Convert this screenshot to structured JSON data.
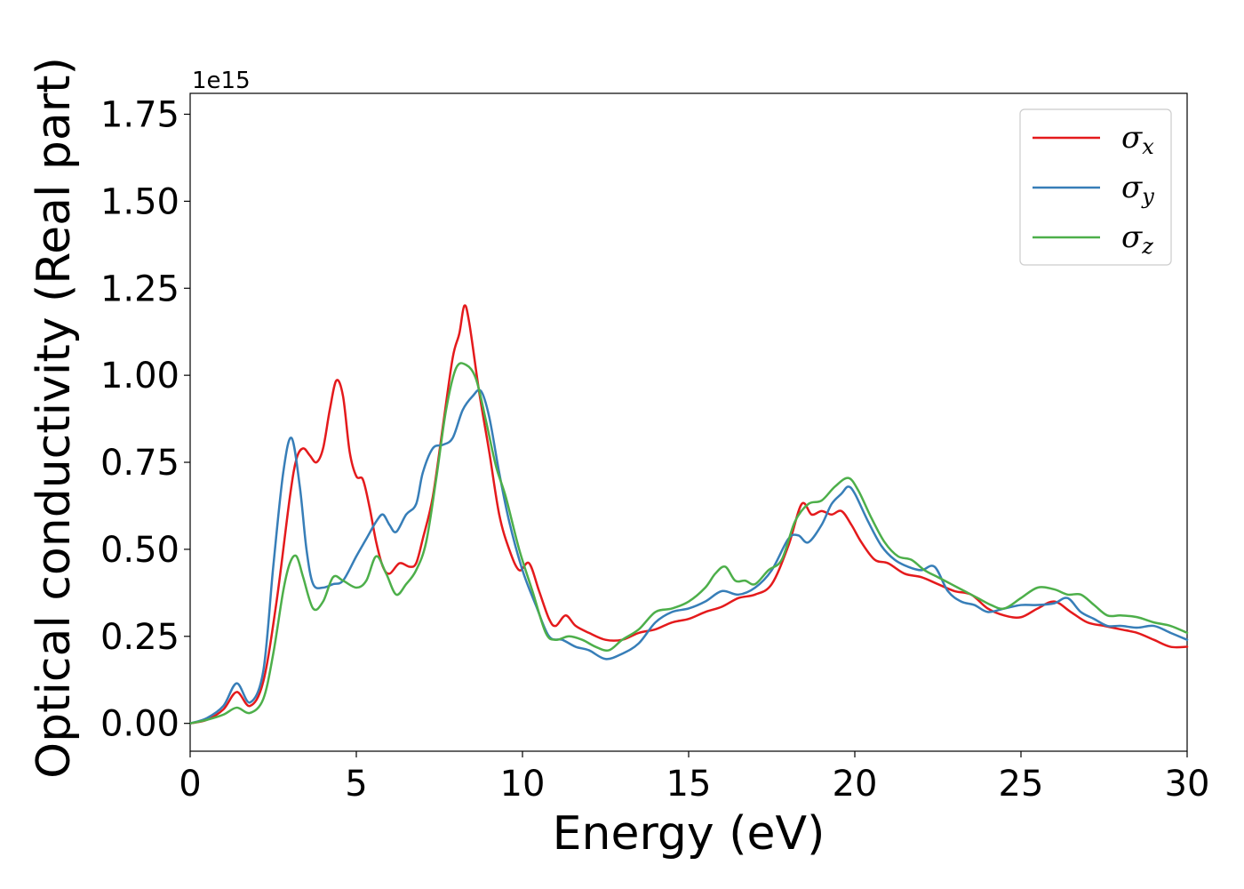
{
  "chart_data": {
    "type": "line",
    "title": "",
    "xlabel": "Energy (eV)",
    "ylabel": "Optical conductivity (Real part)",
    "y_offset_label": "1e15",
    "xlim": [
      0,
      30
    ],
    "ylim": [
      -0.08,
      1.81
    ],
    "xticks": [
      0,
      5,
      10,
      15,
      20,
      25,
      30
    ],
    "xtick_labels": [
      "0",
      "5",
      "10",
      "15",
      "20",
      "25",
      "30"
    ],
    "yticks": [
      0.0,
      0.25,
      0.5,
      0.75,
      1.0,
      1.25,
      1.5,
      1.75
    ],
    "ytick_labels": [
      "0.00",
      "0.25",
      "0.50",
      "0.75",
      "1.00",
      "1.25",
      "1.50",
      "1.75"
    ],
    "grid": false,
    "legend": {
      "placement": "top-right"
    },
    "series": [
      {
        "name": "σx",
        "symbol": "σ",
        "subscript": "x",
        "color": "#e41a1c",
        "x": [
          0,
          0.5,
          1.0,
          1.4,
          1.8,
          2.2,
          2.6,
          3.0,
          3.2,
          3.4,
          3.6,
          3.8,
          4.0,
          4.2,
          4.4,
          4.6,
          4.8,
          5.0,
          5.2,
          5.4,
          5.6,
          5.8,
          6.0,
          6.3,
          6.6,
          6.8,
          7.0,
          7.3,
          7.6,
          7.9,
          8.1,
          8.25,
          8.4,
          8.7,
          9.0,
          9.3,
          9.6,
          9.9,
          10.2,
          10.5,
          10.8,
          11.0,
          11.3,
          11.6,
          12.0,
          12.5,
          13.0,
          13.5,
          14.0,
          14.5,
          15.0,
          15.5,
          16.0,
          16.5,
          17.0,
          17.5,
          18.0,
          18.4,
          18.7,
          19.0,
          19.3,
          19.6,
          19.9,
          20.2,
          20.6,
          21.0,
          21.5,
          22.0,
          22.5,
          23.0,
          23.5,
          24.0,
          24.5,
          25.0,
          25.5,
          26.0,
          26.5,
          27.0,
          27.5,
          28.0,
          28.5,
          29.0,
          29.5,
          30.0
        ],
        "values": [
          0.0,
          0.01,
          0.04,
          0.09,
          0.05,
          0.12,
          0.35,
          0.65,
          0.76,
          0.79,
          0.77,
          0.75,
          0.79,
          0.9,
          0.985,
          0.94,
          0.78,
          0.71,
          0.7,
          0.62,
          0.52,
          0.45,
          0.43,
          0.46,
          0.45,
          0.46,
          0.53,
          0.65,
          0.85,
          1.05,
          1.12,
          1.2,
          1.15,
          0.95,
          0.78,
          0.6,
          0.5,
          0.44,
          0.46,
          0.38,
          0.3,
          0.28,
          0.31,
          0.28,
          0.26,
          0.24,
          0.24,
          0.26,
          0.27,
          0.29,
          0.3,
          0.32,
          0.335,
          0.36,
          0.37,
          0.4,
          0.51,
          0.63,
          0.6,
          0.61,
          0.6,
          0.61,
          0.57,
          0.52,
          0.47,
          0.46,
          0.43,
          0.42,
          0.4,
          0.38,
          0.37,
          0.33,
          0.31,
          0.305,
          0.33,
          0.35,
          0.32,
          0.29,
          0.28,
          0.27,
          0.26,
          0.24,
          0.22,
          0.22
        ]
      },
      {
        "name": "σy",
        "symbol": "σ",
        "subscript": "y",
        "color": "#377eb8",
        "x": [
          0,
          0.5,
          1.0,
          1.4,
          1.8,
          2.2,
          2.5,
          2.8,
          3.05,
          3.3,
          3.5,
          3.7,
          4.0,
          4.3,
          4.6,
          5.0,
          5.3,
          5.6,
          5.8,
          6.0,
          6.2,
          6.5,
          6.8,
          7.0,
          7.3,
          7.6,
          7.9,
          8.2,
          8.5,
          8.75,
          9.0,
          9.3,
          9.6,
          10.0,
          10.4,
          10.8,
          11.2,
          11.6,
          12.0,
          12.5,
          13.0,
          13.5,
          14.0,
          14.5,
          15.0,
          15.5,
          16.0,
          16.5,
          17.0,
          17.5,
          18.0,
          18.3,
          18.6,
          19.0,
          19.3,
          19.6,
          19.8,
          20.0,
          20.4,
          20.8,
          21.2,
          21.6,
          22.0,
          22.4,
          22.8,
          23.2,
          23.6,
          24.0,
          24.5,
          25.0,
          25.5,
          26.0,
          26.4,
          26.8,
          27.2,
          27.6,
          28.0,
          28.5,
          29.0,
          29.5,
          30.0
        ],
        "values": [
          0.0,
          0.015,
          0.05,
          0.115,
          0.06,
          0.15,
          0.45,
          0.72,
          0.82,
          0.68,
          0.5,
          0.4,
          0.39,
          0.4,
          0.41,
          0.48,
          0.53,
          0.58,
          0.6,
          0.57,
          0.55,
          0.6,
          0.63,
          0.72,
          0.79,
          0.8,
          0.82,
          0.9,
          0.94,
          0.955,
          0.88,
          0.72,
          0.58,
          0.44,
          0.34,
          0.25,
          0.24,
          0.22,
          0.21,
          0.185,
          0.2,
          0.23,
          0.29,
          0.32,
          0.33,
          0.35,
          0.38,
          0.37,
          0.39,
          0.44,
          0.53,
          0.54,
          0.52,
          0.57,
          0.63,
          0.66,
          0.68,
          0.66,
          0.58,
          0.51,
          0.47,
          0.45,
          0.44,
          0.45,
          0.38,
          0.35,
          0.34,
          0.32,
          0.33,
          0.34,
          0.34,
          0.345,
          0.36,
          0.32,
          0.3,
          0.28,
          0.28,
          0.275,
          0.28,
          0.26,
          0.24
        ]
      },
      {
        "name": "σz",
        "symbol": "σ",
        "subscript": "z",
        "color": "#4daf4a",
        "x": [
          0,
          0.5,
          1.0,
          1.4,
          1.8,
          2.2,
          2.5,
          2.8,
          3.0,
          3.2,
          3.4,
          3.7,
          4.0,
          4.3,
          4.6,
          5.0,
          5.3,
          5.6,
          5.9,
          6.2,
          6.5,
          6.8,
          7.1,
          7.4,
          7.7,
          8.0,
          8.3,
          8.6,
          8.9,
          9.2,
          9.5,
          9.9,
          10.3,
          10.7,
          11.0,
          11.4,
          11.8,
          12.2,
          12.6,
          13.0,
          13.5,
          14.0,
          14.5,
          15.0,
          15.5,
          15.8,
          16.1,
          16.4,
          16.7,
          17.0,
          17.4,
          17.8,
          18.2,
          18.6,
          19.0,
          19.4,
          19.8,
          20.1,
          20.5,
          20.9,
          21.3,
          21.7,
          22.1,
          22.5,
          22.9,
          23.3,
          23.7,
          24.1,
          24.5,
          25.0,
          25.5,
          26.0,
          26.4,
          26.8,
          27.2,
          27.6,
          28.0,
          28.5,
          29.0,
          29.5,
          30.0
        ],
        "values": [
          0.0,
          0.01,
          0.025,
          0.045,
          0.03,
          0.07,
          0.2,
          0.38,
          0.46,
          0.48,
          0.42,
          0.33,
          0.35,
          0.42,
          0.41,
          0.39,
          0.41,
          0.48,
          0.43,
          0.37,
          0.4,
          0.44,
          0.52,
          0.7,
          0.9,
          1.02,
          1.03,
          0.99,
          0.87,
          0.74,
          0.65,
          0.5,
          0.38,
          0.26,
          0.24,
          0.25,
          0.24,
          0.22,
          0.21,
          0.24,
          0.27,
          0.32,
          0.33,
          0.35,
          0.39,
          0.43,
          0.45,
          0.41,
          0.41,
          0.4,
          0.44,
          0.47,
          0.58,
          0.63,
          0.64,
          0.68,
          0.705,
          0.67,
          0.59,
          0.52,
          0.48,
          0.47,
          0.44,
          0.42,
          0.4,
          0.38,
          0.36,
          0.34,
          0.33,
          0.36,
          0.39,
          0.385,
          0.37,
          0.37,
          0.34,
          0.31,
          0.31,
          0.305,
          0.29,
          0.28,
          0.26
        ]
      }
    ]
  }
}
